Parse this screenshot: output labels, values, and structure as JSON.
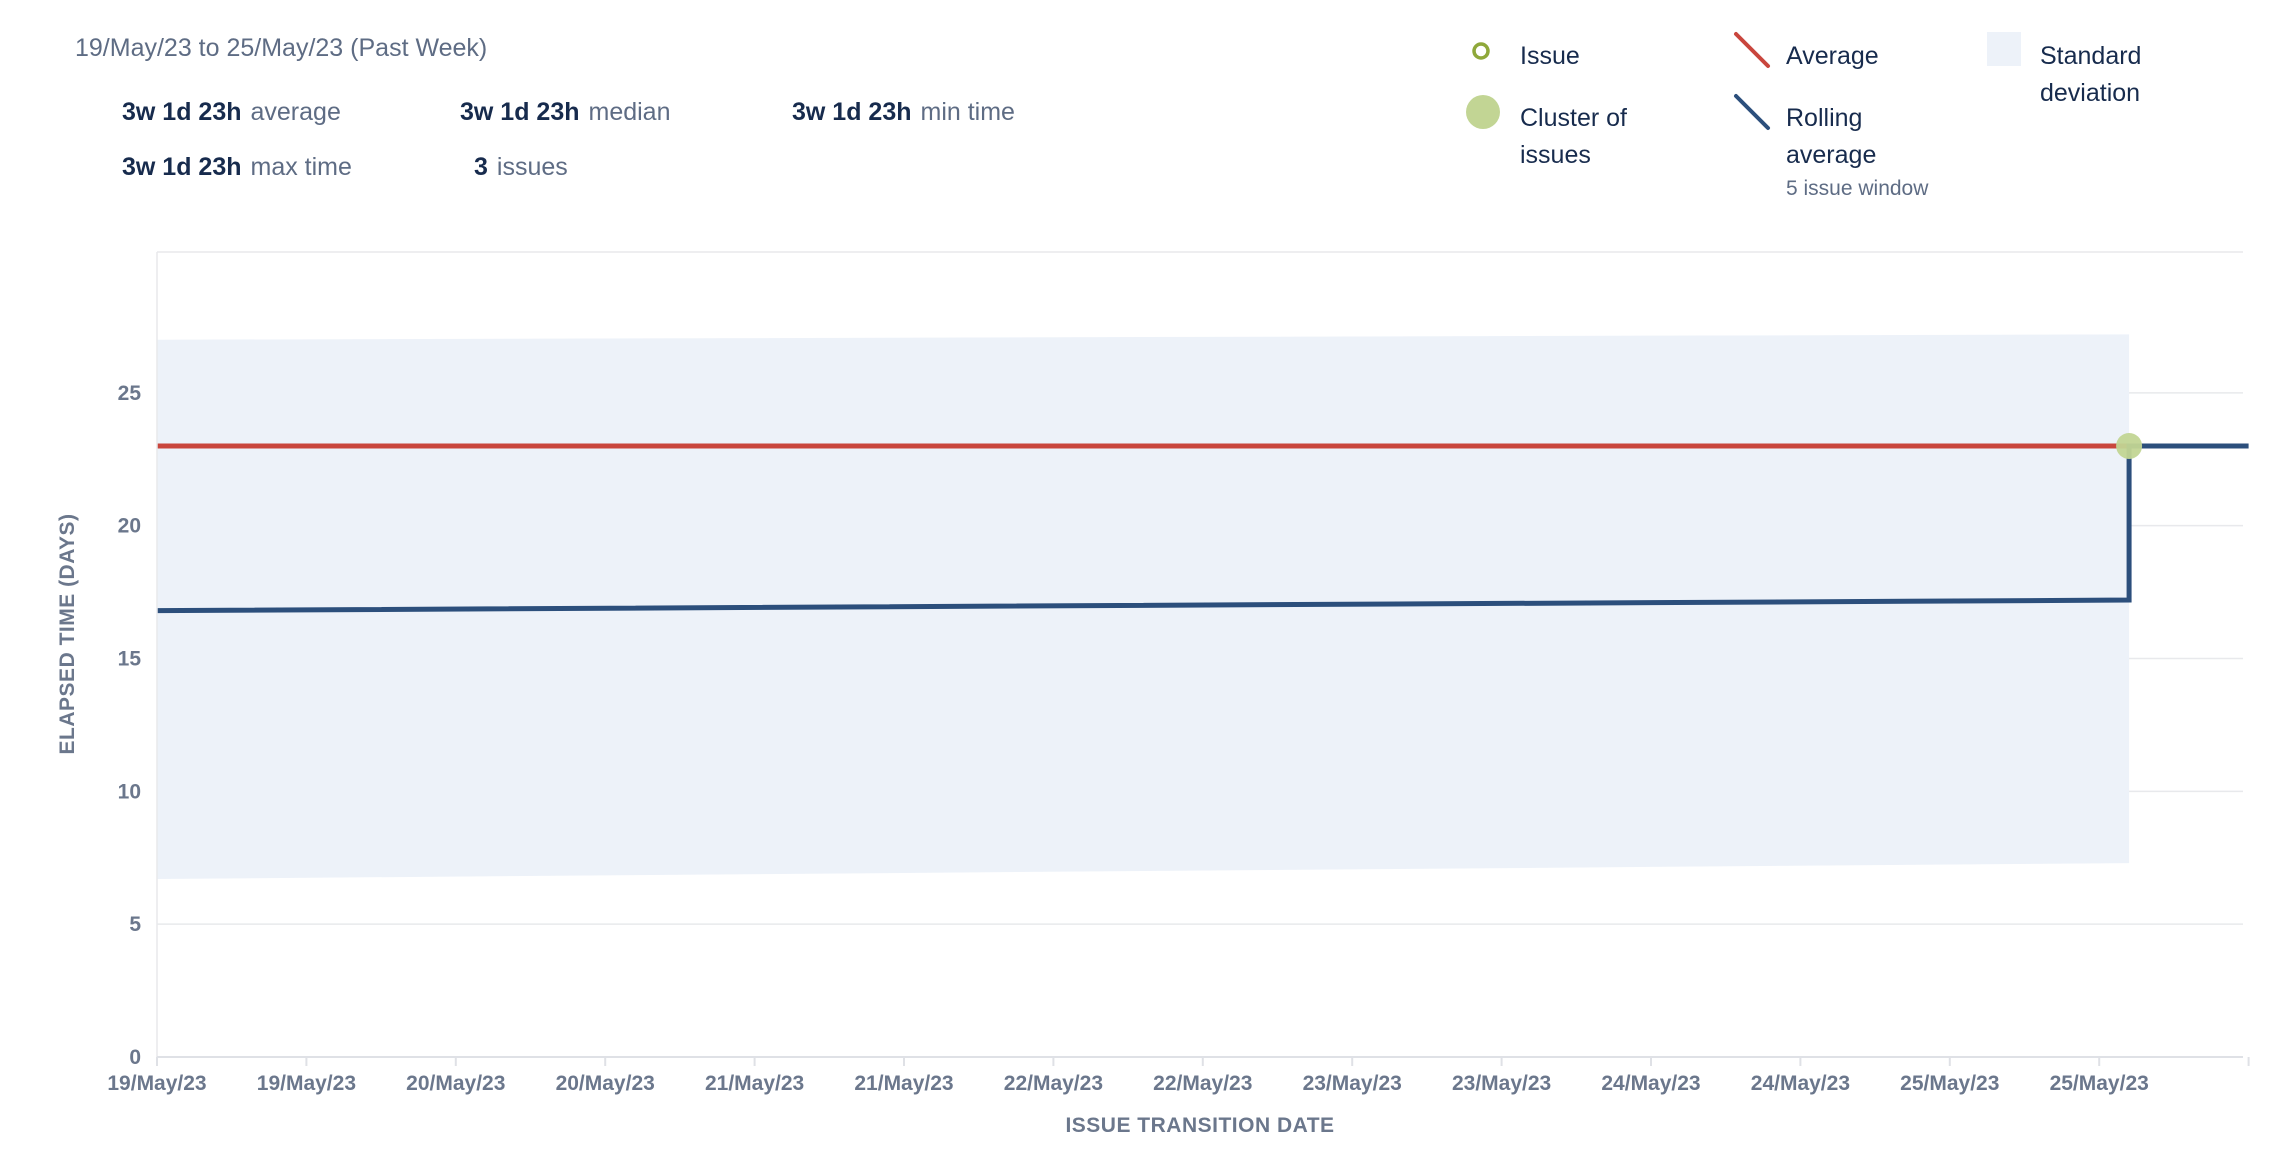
{
  "header": {
    "date_range": "19/May/23 to 25/May/23 (Past Week)",
    "stats": [
      {
        "value": "3w 1d 23h",
        "label": "average"
      },
      {
        "value": "3w 1d 23h",
        "label": "median"
      },
      {
        "value": "3w 1d 23h",
        "label": "min time"
      },
      {
        "value": "3w 1d 23h",
        "label": "max time"
      },
      {
        "value": "3",
        "label": "issues"
      }
    ]
  },
  "legend": {
    "issue": "Issue",
    "cluster": "Cluster of issues",
    "average": "Average",
    "rolling": "Rolling average",
    "rolling_sub": "5 issue window",
    "std": "Standard deviation"
  },
  "colors": {
    "issue": "#8fa83a",
    "cluster": "#c2d594",
    "average": "#c9463d",
    "rolling": "#2c4f7c",
    "std_band": "#edf2f9",
    "grid": "#e8e9ec",
    "tick": "#6b778c"
  },
  "chart_data": {
    "type": "line",
    "xlabel": "ISSUE TRANSITION DATE",
    "ylabel": "ELAPSED TIME (DAYS)",
    "ylim": [
      0,
      30
    ],
    "yticks": [
      0,
      5,
      10,
      15,
      20,
      25
    ],
    "grid": true,
    "x_tick_labels": [
      "19/May/23",
      "19/May/23",
      "20/May/23",
      "20/May/23",
      "21/May/23",
      "21/May/23",
      "22/May/23",
      "22/May/23",
      "23/May/23",
      "23/May/23",
      "24/May/23",
      "24/May/23",
      "25/May/23",
      "25/May/23"
    ],
    "x_range": [
      0,
      14
    ],
    "average": {
      "y": 23.0
    },
    "rolling_average": [
      {
        "x": 0.0,
        "y": 16.8
      },
      {
        "x": 13.2,
        "y": 17.2
      },
      {
        "x": 13.2,
        "y": 23.0
      },
      {
        "x": 14.0,
        "y": 23.0
      }
    ],
    "std_band": {
      "x": [
        0.0,
        13.2
      ],
      "upper": [
        27.0,
        27.2
      ],
      "lower": [
        6.7,
        7.3
      ]
    },
    "clusters": [
      {
        "x": 13.2,
        "y": 23.0,
        "count": 3
      }
    ]
  }
}
